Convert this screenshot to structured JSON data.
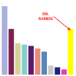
{
  "chart_data": {
    "type": "bar",
    "categories": [
      null,
      null,
      null,
      null,
      null,
      null,
      null,
      null,
      null,
      null,
      null
    ],
    "values": [
      262,
      175,
      120,
      115,
      110,
      100,
      88,
      35,
      28,
      20,
      175
    ],
    "colors": [
      "#aab0dd",
      "#7b2252",
      "#d4d49a",
      "#88cccc",
      "#5c1a6e",
      "#e8897a",
      "#5588bb",
      "#c8c8c8",
      "#1a237e",
      "#dd44aa",
      "#ffff00"
    ],
    "ylim": [
      0,
      275.1
    ],
    "grid": false,
    "tick_labels": false,
    "annotations": [
      {
        "text": "OIL\nSANDS",
        "color": "red"
      }
    ]
  }
}
